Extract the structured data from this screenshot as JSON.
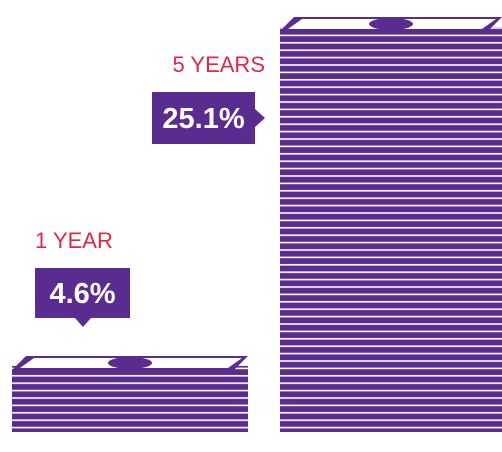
{
  "chart_data": {
    "type": "stack",
    "categories": [
      "1 YEAR",
      "5 YEARS"
    ],
    "values": [
      4.6,
      25.1
    ],
    "value_labels": [
      "4.6%",
      "25.1%"
    ],
    "color": "#5b2c8f",
    "label_color": "#e0284a"
  }
}
